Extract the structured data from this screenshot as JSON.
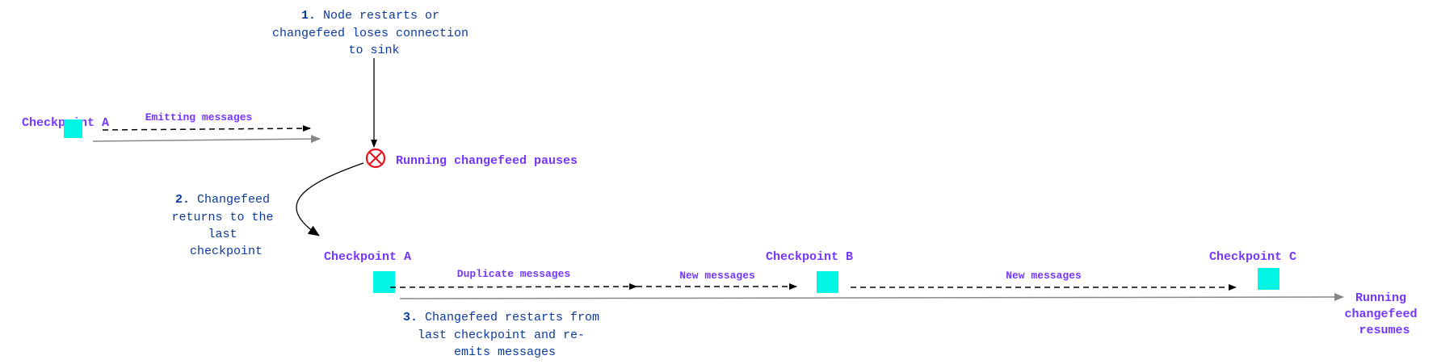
{
  "colors": {
    "checkpoint": "#00f5e4",
    "label": "#7436ff",
    "step_text": "#0b3a9e",
    "stop_icon": "#e8141c",
    "timeline": "#888888",
    "arrow": "#000000"
  },
  "step1": {
    "number": "1.",
    "lines": [
      "Node restarts or",
      "changefeed loses connection",
      "to sink"
    ]
  },
  "step2": {
    "number": "2.",
    "lines": [
      "Changefeed",
      "returns to the",
      "last",
      "checkpoint"
    ]
  },
  "step3": {
    "number": "3.",
    "lines": [
      "Changefeed restarts from",
      "last checkpoint and re-",
      "emits messages"
    ]
  },
  "top_timeline": {
    "checkpoint": "Checkpoint A",
    "edge_label": "Emitting messages",
    "pause_label": "Running changefeed pauses",
    "pause_icon": "circle-x-icon"
  },
  "bottom_timeline": {
    "checkpoints": [
      "Checkpoint A",
      "Checkpoint B",
      "Checkpoint C"
    ],
    "edge_labels": [
      "Duplicate messages",
      "New messages",
      "New messages"
    ],
    "resume_label": [
      "Running",
      "changefeed",
      "resumes"
    ]
  }
}
